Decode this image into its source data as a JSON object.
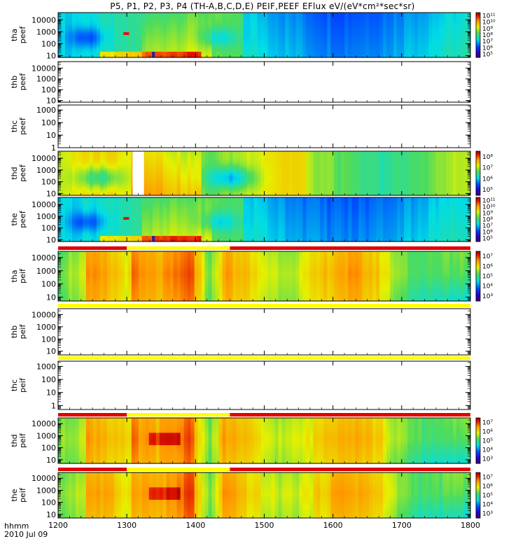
{
  "figure": {
    "title": "P5, P1, P2, P3, P4 (TH-A,B,C,D,E) PEIF,PEEF EFlux eV/(eV*cm²*sec*sr)",
    "time_label_line1": "hhmm",
    "time_label_line2": "2010 Jul 09"
  },
  "x_axis": {
    "range": [
      "12:00",
      "18:00"
    ],
    "ticks": [
      "1200",
      "1300",
      "1400",
      "1500",
      "1600",
      "1700",
      "1800"
    ]
  },
  "chart_data": [
    {
      "type": "heatmap",
      "ylabel": [
        "tha",
        "peef"
      ],
      "y_ticks": [
        "10",
        "100",
        "1000",
        "10000"
      ],
      "yrange": [
        7,
        40000
      ],
      "colorbar": {
        "ticks": [
          "10¹¹",
          "10¹⁰",
          "10⁹",
          "10⁸",
          "10⁷",
          "10⁶",
          "10⁵"
        ],
        "range_exp": [
          5,
          11
        ]
      },
      "has_data": true,
      "style": "electron"
    },
    {
      "type": "heatmap",
      "ylabel": [
        "thb",
        "peef"
      ],
      "y_ticks": [
        "10",
        "100",
        "1000",
        "10000"
      ],
      "yrange": [
        7,
        40000
      ],
      "has_data": false
    },
    {
      "type": "heatmap",
      "ylabel": [
        "thc",
        "peef"
      ],
      "y_ticks": [
        "1",
        "10",
        "100",
        "1000"
      ],
      "yrange": [
        1,
        2500
      ],
      "has_data": false
    },
    {
      "type": "heatmap",
      "ylabel": [
        "thd",
        "peef"
      ],
      "y_ticks": [
        "10",
        "100",
        "1000",
        "10000"
      ],
      "yrange": [
        7,
        40000
      ],
      "colorbar": {
        "ticks": [
          "10⁸",
          "10⁷",
          "10⁶",
          "10⁵"
        ],
        "range_exp": [
          4.7,
          8
        ]
      },
      "has_data": true,
      "style": "thd-electron"
    },
    {
      "type": "heatmap",
      "ylabel": [
        "the",
        "peef"
      ],
      "y_ticks": [
        "10",
        "100",
        "1000",
        "10000"
      ],
      "yrange": [
        7,
        40000
      ],
      "colorbar": {
        "ticks": [
          "10¹¹",
          "10¹⁰",
          "10⁹",
          "10⁸",
          "10⁷",
          "10⁶",
          "10⁵"
        ],
        "range_exp": [
          5,
          11
        ]
      },
      "has_data": true,
      "style": "electron"
    },
    {
      "type": "heatmap",
      "ylabel": [
        "tha",
        "peif"
      ],
      "y_ticks": [
        "10",
        "100",
        "1000",
        "10000"
      ],
      "yrange": [
        5,
        30000
      ],
      "colorbar": {
        "ticks": [
          "10⁷",
          "10⁶",
          "10⁵",
          "10⁴",
          "10³"
        ],
        "range_exp": [
          3,
          7
        ]
      },
      "has_data": true,
      "style": "ion"
    },
    {
      "type": "heatmap",
      "ylabel": [
        "thb",
        "peif"
      ],
      "y_ticks": [
        "10",
        "100",
        "1000",
        "10000"
      ],
      "yrange": [
        5,
        30000
      ],
      "has_data": false
    },
    {
      "type": "heatmap",
      "ylabel": [
        "thc",
        "peif"
      ],
      "y_ticks": [
        "1",
        "10",
        "100",
        "1000"
      ],
      "yrange": [
        0.5,
        2500
      ],
      "has_data": false
    },
    {
      "type": "heatmap",
      "ylabel": [
        "thd",
        "peif"
      ],
      "y_ticks": [
        "10",
        "100",
        "1000",
        "10000"
      ],
      "yrange": [
        5,
        30000
      ],
      "colorbar": {
        "ticks": [
          "10⁷",
          "10⁶",
          "10⁵",
          "10⁴",
          "10³"
        ],
        "range_exp": [
          3,
          7
        ]
      },
      "has_data": true,
      "style": "ion-hot"
    },
    {
      "type": "heatmap",
      "ylabel": [
        "the",
        "peif"
      ],
      "y_ticks": [
        "10",
        "100",
        "1000",
        "10000"
      ],
      "yrange": [
        5,
        30000
      ],
      "colorbar": {
        "ticks": [
          "10⁷",
          "10⁶",
          "10⁵",
          "10⁴",
          "10³"
        ],
        "range_exp": [
          3,
          7
        ]
      },
      "has_data": true,
      "style": "ion-hot"
    }
  ],
  "mode_bars": [
    {
      "above_panel": 6,
      "segments": [
        {
          "from": "12:00",
          "to": "13:00",
          "color": "#e00000"
        },
        {
          "from": "13:00",
          "to": "14:30",
          "color": "#ffff00"
        },
        {
          "from": "14:30",
          "to": "18:00",
          "color": "#e00000"
        }
      ]
    },
    {
      "above_panel": 7,
      "segments": [
        {
          "from": "12:00",
          "to": "18:00",
          "color": "#ffff00"
        }
      ]
    },
    {
      "above_panel": 8,
      "segments": [
        {
          "from": "12:00",
          "to": "18:00",
          "color": "#ffff00"
        }
      ]
    },
    {
      "above_panel": 9,
      "segments": [
        {
          "from": "12:00",
          "to": "13:00",
          "color": "#e00000"
        },
        {
          "from": "13:00",
          "to": "14:30",
          "color": "#ffff00"
        },
        {
          "from": "14:30",
          "to": "18:00",
          "color": "#e00000"
        }
      ]
    },
    {
      "above_panel": 10,
      "segments": [
        {
          "from": "12:00",
          "to": "13:00",
          "color": "#e00000"
        },
        {
          "from": "13:00",
          "to": "14:30",
          "color": "#ffff00"
        },
        {
          "from": "14:30",
          "to": "18:00",
          "color": "#e00000"
        }
      ]
    }
  ]
}
